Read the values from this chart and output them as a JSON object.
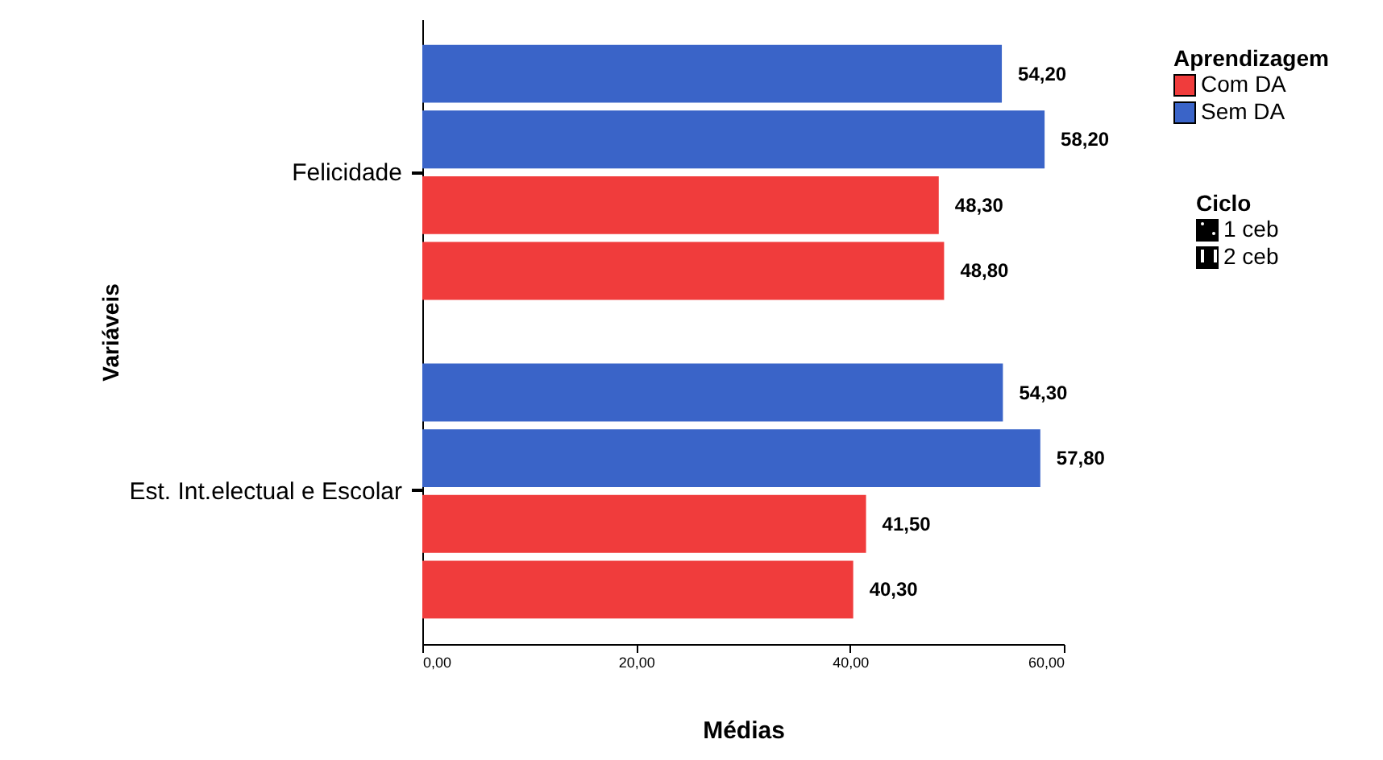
{
  "chart_data": {
    "type": "bar",
    "orientation": "horizontal",
    "xlabel": "Médias",
    "ylabel": "Variáveis",
    "legend_title": "Aprendizagem",
    "categories": [
      "Felicidade",
      "Est. Int.electual e Escolar"
    ],
    "series": [
      {
        "color": "#3a64c8",
        "values": [
          54.2,
          54.3
        ],
        "value_labels": [
          "54,20",
          "54,30"
        ]
      },
      {
        "name": "Sem DA",
        "color": "#3a64c8",
        "values": [
          58.2,
          57.8
        ],
        "value_labels": [
          "58,20",
          "57,80"
        ]
      },
      {
        "color": "#f03c3c",
        "values": [
          48.3,
          41.5
        ],
        "value_labels": [
          "48,30",
          "41,50"
        ]
      },
      {
        "name": "Com DA",
        "color": "#f03c3c",
        "values": [
          48.8,
          40.3
        ],
        "value_labels": [
          "48,80",
          "40,30"
        ]
      }
    ],
    "xlim": [
      0,
      60
    ],
    "xticks": [
      {
        "value": 0,
        "label": "0,00"
      },
      {
        "value": 20,
        "label": "20,00"
      },
      {
        "value": 40,
        "label": "40,00"
      },
      {
        "value": 60,
        "label": "60,00"
      }
    ],
    "annotations": [
      "Ciclo",
      "1 ceb",
      "2 ceb"
    ],
    "legend": "top right",
    "grid": false
  }
}
